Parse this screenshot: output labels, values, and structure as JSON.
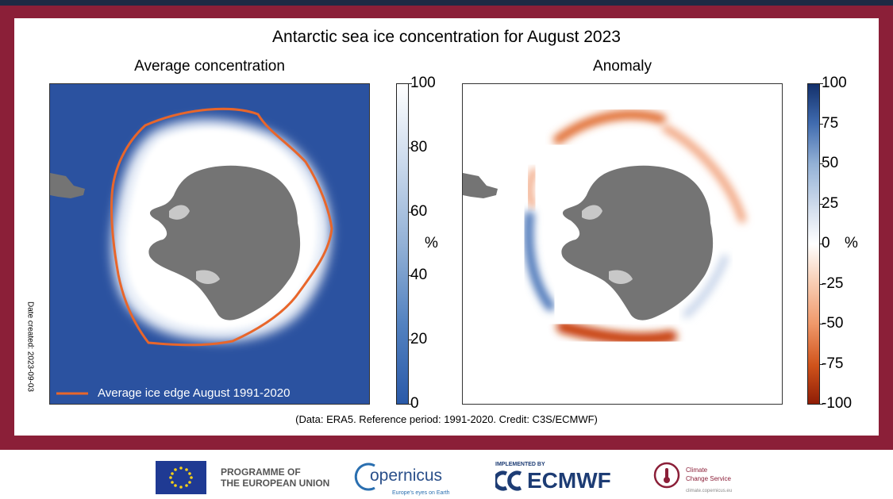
{
  "title": "Antarctic sea ice concentration for August 2023",
  "date_created": "Date created: 2023-09-03",
  "credit": "(Data: ERA5. Reference period: 1991-2020. Credit: C3S/ECMWF)",
  "colors": {
    "frame": "#8b1f38",
    "ocean": "#2b52a0",
    "land": "#747474",
    "ice_edge": "#e8662b"
  },
  "chart_data": [
    {
      "type": "heatmap",
      "title": "Average concentration",
      "legend": "Average ice edge August 1991-2020",
      "colorbar": {
        "label": "%",
        "range": [
          0,
          100
        ],
        "ticks": [
          0,
          20,
          40,
          60,
          80,
          100
        ]
      }
    },
    {
      "type": "heatmap",
      "title": "Anomaly",
      "colorbar": {
        "label": "%",
        "range": [
          -100,
          100
        ],
        "ticks": [
          100,
          75,
          50,
          25,
          0,
          -25,
          -50,
          -75,
          -100
        ]
      }
    }
  ],
  "footer": {
    "eu_line1": "PROGRAMME OF",
    "eu_line2": "THE EUROPEAN UNION",
    "copernicus": "opernicus",
    "copernicus_tagline": "Europe's eyes on Earth",
    "implemented_by": "IMPLEMENTED BY",
    "ecmwf": "ECMWF",
    "c3s_line1": "Climate",
    "c3s_line2": "Change Service",
    "c3s_url": "climate.copernicus.eu"
  }
}
